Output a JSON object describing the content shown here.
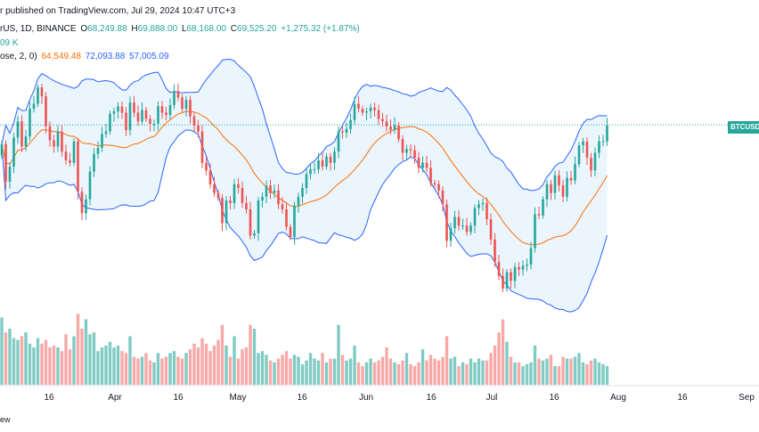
{
  "header": {
    "published": "r published on TradingView.com, Jul 29, 2024 10:47 UTC+3",
    "symbol_line": "rUS, 1D, BINANCE",
    "o_label": "O",
    "o": "68,249.88",
    "h_label": "H",
    "h": "69,888.00",
    "l_label": "L",
    "l": "68,168.00",
    "c_label": "C",
    "c": "69,525.20",
    "change": "+1,275.32 (+1.87%)",
    "volume": "09 K",
    "bb_label": "ose, 2, 0)",
    "bb_basis": "64,549.48",
    "bb_upper": "72,093.88",
    "bb_lower": "57,005.09"
  },
  "price_badge": "BTCUSDT",
  "footer_text": "ew",
  "colors": {
    "up": "#26a69a",
    "down": "#ef5350",
    "vol_up": "#80cbc4",
    "vol_down": "#f7a9a7",
    "band": "#2962ff",
    "basis": "#ff6d00",
    "fill": "#e3f2fd",
    "text": "#131722",
    "grid": "#e0e3eb"
  },
  "chart_data": {
    "type": "candlestick",
    "x_tick_labels": [
      "16",
      "Apr",
      "16",
      "May",
      "16",
      "Jun",
      "16",
      "Jul",
      "16",
      "Aug",
      "16",
      "Sep"
    ],
    "ylim": [
      55000,
      74500
    ],
    "last_price": 69525.2,
    "series": [
      {
        "name": "close",
        "values": [
          68000,
          65000,
          66200,
          68500,
          69800,
          67800,
          68600,
          70800,
          71200,
          72500,
          71800,
          69400,
          68300,
          67800,
          69000,
          67400,
          66700,
          66500,
          68200,
          64200,
          62500,
          63600,
          65800,
          67200,
          67700,
          68800,
          69000,
          70400,
          70600,
          71000,
          70500,
          69100,
          71300,
          70500,
          69800,
          70700,
          70000,
          69600,
          69600,
          71000,
          70500,
          70300,
          71100,
          72200,
          71700,
          70800,
          71500,
          70200,
          69500,
          69000,
          66500,
          65900,
          64800,
          64100,
          63700,
          61700,
          63500,
          63300,
          64800,
          64500,
          63300,
          62800,
          60700,
          60900,
          63500,
          63800,
          64700,
          64100,
          64300,
          63200,
          62800,
          61400,
          60600,
          63100,
          63800,
          64500,
          65600,
          66000,
          66000,
          66700,
          66200,
          67000,
          66500,
          67400,
          69000,
          68900,
          69200,
          69900,
          71200,
          70800,
          70500,
          70600,
          70900,
          70700,
          70000,
          69800,
          69400,
          69100,
          69500,
          68400,
          67300,
          67600,
          67500,
          66900,
          66100,
          66500,
          66100,
          64900,
          64800,
          64300,
          63200,
          60300,
          61300,
          62200,
          61500,
          61500,
          61000,
          61500,
          62900,
          63200,
          63300,
          62000,
          60400,
          58600,
          57500,
          56500,
          57800,
          57100,
          58200,
          58000,
          58300,
          58400,
          59700,
          62400,
          62300,
          63600,
          64800,
          64100,
          65500,
          64700,
          63800,
          65300,
          65100,
          66400,
          67900,
          68200,
          66900,
          65900,
          67300,
          68200,
          68200,
          69500
        ]
      },
      {
        "name": "volume",
        "values": [
          36,
          28,
          30,
          25,
          24,
          26,
          28,
          22,
          20,
          25,
          22,
          24,
          20,
          21,
          20,
          18,
          27,
          19,
          26,
          38,
          30,
          35,
          27,
          28,
          18,
          20,
          21,
          23,
          20,
          21,
          18,
          17,
          26,
          15,
          14,
          15,
          17,
          13,
          12,
          17,
          14,
          15,
          17,
          18,
          15,
          14,
          17,
          19,
          22,
          20,
          25,
          22,
          18,
          21,
          24,
          32,
          21,
          15,
          26,
          14,
          19,
          20,
          32,
          30,
          17,
          18,
          16,
          13,
          12,
          14,
          16,
          18,
          14,
          16,
          15,
          11,
          13,
          17,
          14,
          13,
          17,
          12,
          14,
          14,
          32,
          16,
          13,
          14,
          21,
          12,
          10,
          12,
          14,
          12,
          13,
          15,
          20,
          14,
          12,
          11,
          13,
          17,
          11,
          10,
          12,
          19,
          13,
          16,
          14,
          13,
          15,
          26,
          14,
          15,
          10,
          12,
          11,
          14,
          12,
          14,
          13,
          13,
          17,
          21,
          28,
          35,
          23,
          15,
          12,
          12,
          10,
          11,
          12,
          21,
          14,
          13,
          14,
          16,
          10,
          10,
          15,
          14,
          14,
          15,
          17,
          12,
          11,
          13,
          14,
          12,
          11,
          10
        ]
      }
    ]
  }
}
